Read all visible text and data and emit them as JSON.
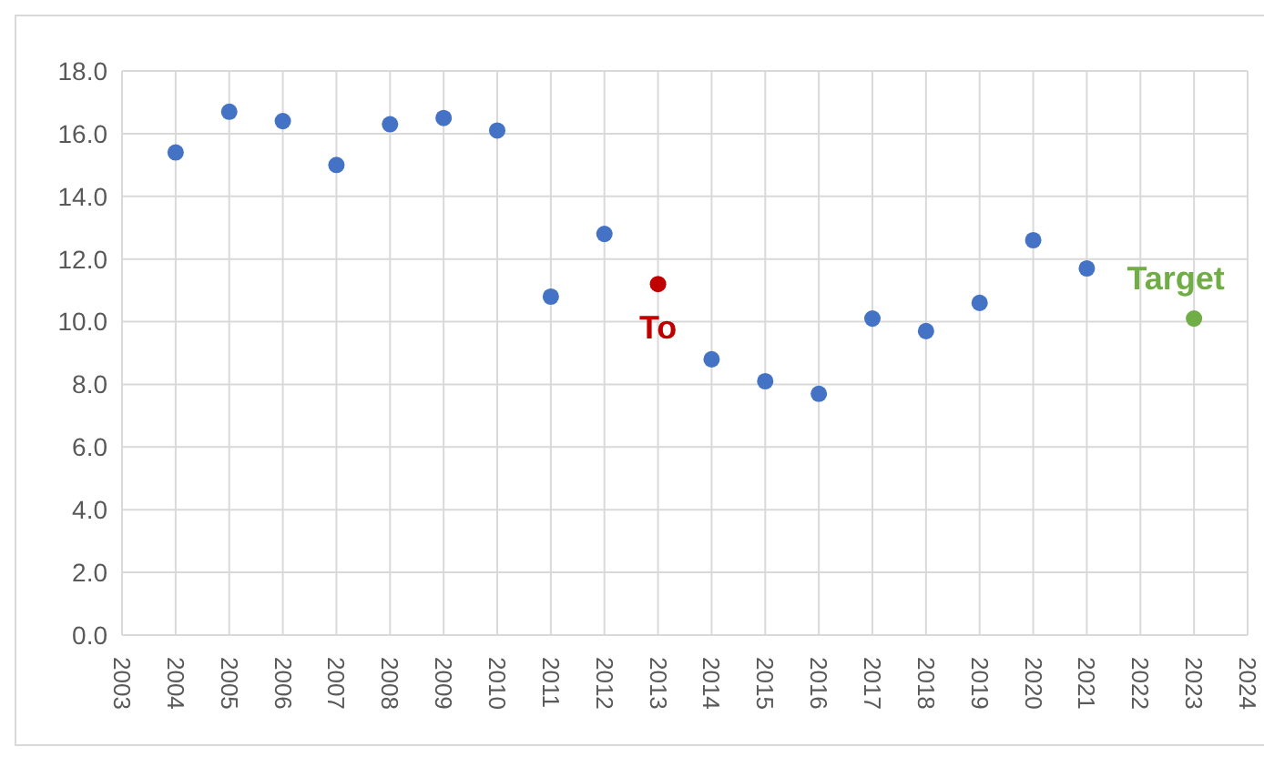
{
  "chart_data": {
    "type": "scatter",
    "series": [
      {
        "color": "#4472c4",
        "x": [
          2004,
          2005,
          2006,
          2007,
          2008,
          2009,
          2010,
          2011,
          2012,
          2014,
          2015,
          2016,
          2017,
          2018,
          2019,
          2020,
          2021
        ],
        "values": [
          15.4,
          16.7,
          16.4,
          15.0,
          16.3,
          16.5,
          16.1,
          10.8,
          12.8,
          8.8,
          8.1,
          7.7,
          10.1,
          9.7,
          10.6,
          12.6,
          11.7
        ]
      },
      {
        "color": "#c00000",
        "x": [
          2013
        ],
        "values": [
          11.2
        ]
      },
      {
        "color": "#70ad47",
        "x": [
          2023
        ],
        "values": [
          10.1
        ]
      }
    ],
    "annotations": [
      {
        "text": "To",
        "x": 2013,
        "y": 11.2
      },
      {
        "text": "Target",
        "x": 2023,
        "y": 10.1
      }
    ],
    "xlim": [
      2003,
      2024
    ],
    "xticks": [
      2003,
      2004,
      2005,
      2006,
      2007,
      2008,
      2009,
      2010,
      2011,
      2012,
      2013,
      2014,
      2015,
      2016,
      2017,
      2018,
      2019,
      2020,
      2021,
      2022,
      2023,
      2024
    ],
    "ylim": [
      0,
      18
    ],
    "yticks": [
      {
        "value": 0,
        "label": "0.0"
      },
      {
        "value": 2,
        "label": "2.0"
      },
      {
        "value": 4,
        "label": "4.0"
      },
      {
        "value": 6,
        "label": "6.0"
      },
      {
        "value": 8,
        "label": "8.0"
      },
      {
        "value": 10,
        "label": "10.0"
      },
      {
        "value": 12,
        "label": "12.0"
      },
      {
        "value": 14,
        "label": "14.0"
      },
      {
        "value": 16,
        "label": "16.0"
      },
      {
        "value": 18,
        "label": "18.0"
      }
    ],
    "grid": true,
    "marker": "circle",
    "legend": false
  }
}
